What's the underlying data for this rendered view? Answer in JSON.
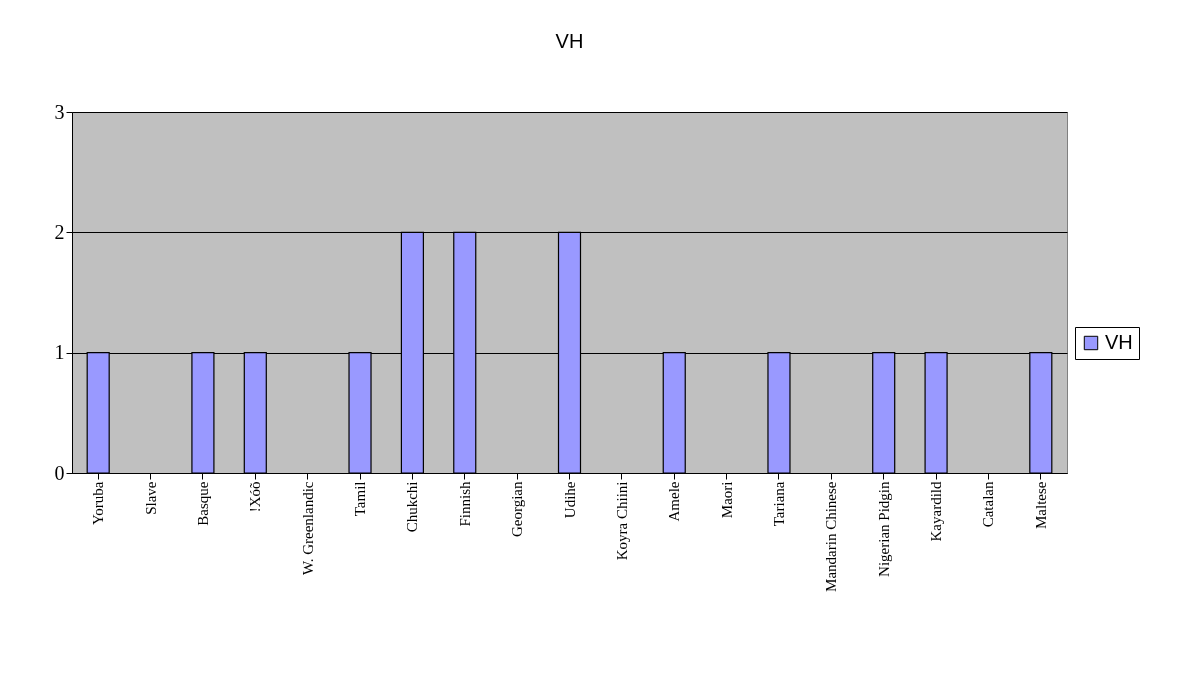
{
  "chart_data": {
    "type": "bar",
    "title": "VH",
    "categories": [
      "Yoruba",
      "Slave",
      "Basque",
      "!Xóõ",
      "W. Greenlandic",
      "Tamil",
      "Chukchi",
      "Finnish",
      "Georgian",
      "Udihe",
      "Koyra Chiini",
      "Amele",
      "Maori",
      "Tariana",
      "Mandarin Chinese",
      "Nigerian Pidgin",
      "Kayardild",
      "Catalan",
      "Maltese"
    ],
    "series": [
      {
        "name": "VH",
        "color": "#9999ff",
        "values": [
          1,
          null,
          1,
          1,
          null,
          1,
          2,
          2,
          null,
          2,
          null,
          1,
          null,
          1,
          null,
          1,
          1,
          null,
          1
        ]
      }
    ],
    "ylim": [
      0,
      3
    ],
    "yticks": [
      0,
      1,
      2,
      3
    ],
    "grid": "y",
    "legend": "right"
  }
}
